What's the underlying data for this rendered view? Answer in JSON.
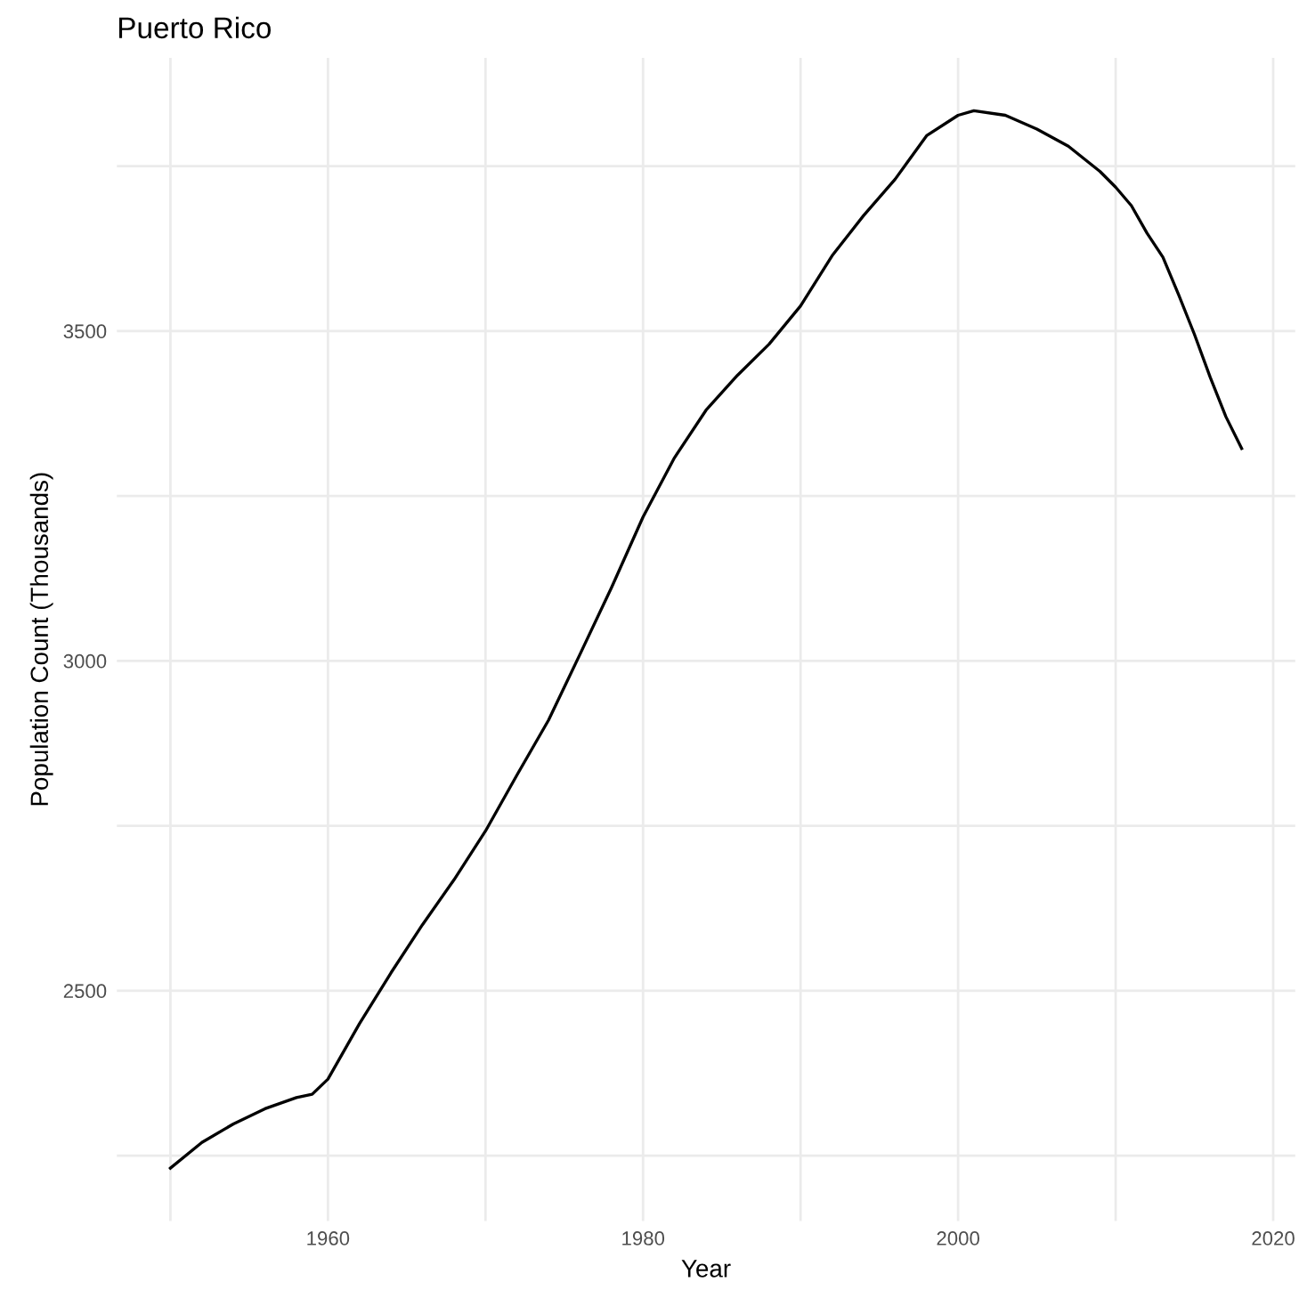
{
  "chart_data": {
    "type": "line",
    "title": "Puerto Rico",
    "xlabel": "Year",
    "ylabel": "Population Count (Thousands)",
    "x": [
      1950,
      1952,
      1954,
      1956,
      1958,
      1959,
      1960,
      1962,
      1964,
      1966,
      1968,
      1970,
      1972,
      1974,
      1976,
      1978,
      1980,
      1982,
      1984,
      1986,
      1988,
      1990,
      1992,
      1994,
      1996,
      1998,
      2000,
      2001,
      2003,
      2005,
      2007,
      2009,
      2010,
      2011,
      2012,
      2013,
      2014,
      2015,
      2016,
      2017,
      2018
    ],
    "series": [
      {
        "color": "#000000",
        "values": [
          2231,
          2270,
          2298,
          2321,
          2338,
          2343,
          2366,
          2450,
          2527,
          2600,
          2668,
          2742,
          2827,
          2910,
          3010,
          3111,
          3218,
          3308,
          3380,
          3433,
          3480,
          3538,
          3614,
          3675,
          3730,
          3796,
          3827,
          3834,
          3827,
          3806,
          3780,
          3742,
          3718,
          3690,
          3648,
          3612,
          3555,
          3495,
          3430,
          3370,
          3322
        ]
      }
    ],
    "xlim": [
      1946.6,
      2021.4
    ],
    "xticks": [
      {
        "value": 1950,
        "label": null
      },
      1960,
      {
        "value": 1970,
        "label": null
      },
      1980,
      {
        "value": 1990,
        "label": null
      },
      2000,
      {
        "value": 2010,
        "label": null
      },
      2020
    ],
    "ylim": [
      2151,
      3914
    ],
    "yticks": [
      {
        "value": 2250,
        "label": null
      },
      2500,
      {
        "value": 2750,
        "label": null
      },
      3000,
      {
        "value": 3250,
        "label": null
      },
      3500,
      {
        "value": 3750,
        "label": null
      }
    ],
    "grid": true,
    "line_style": "solid"
  }
}
